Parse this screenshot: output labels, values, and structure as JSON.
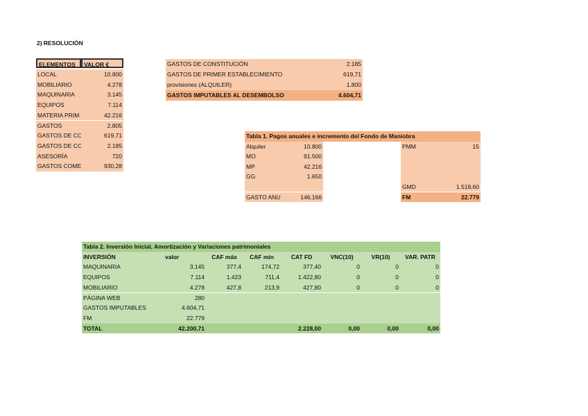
{
  "section_title": "2) RESOLUCIÓN",
  "elements": {
    "header": [
      "ELEMENTOS",
      "VALOR €"
    ],
    "rows": [
      [
        "LOCAL",
        "10.800"
      ],
      [
        "MOBILIARIO",
        "4.278"
      ],
      [
        "MAQUINARIA",
        "3.145"
      ],
      [
        "EQUIPOS",
        "7.114"
      ],
      [
        "MATERIA PRIM",
        "42.216"
      ],
      [
        "GASTOS",
        "2.805"
      ],
      [
        "GASTOS DE CO",
        "619,71"
      ],
      [
        "GASTOS DE CO",
        "2.185"
      ],
      [
        "ASESORÍA",
        "720"
      ],
      [
        "GASTOS COME",
        "930,28"
      ]
    ]
  },
  "expenses": {
    "rows": [
      [
        "GASTOS DE CONSTITUCIÓN",
        "2.185"
      ],
      [
        "GASTOS DE PRIMER ESTABLECIMIENTO",
        "619,71"
      ],
      [
        "provisiones (ALQUILER)",
        "1.800"
      ]
    ],
    "total": [
      "GASTOS IMPUTABLES AL DESEMBOLSO",
      "4.604,71"
    ]
  },
  "table1": {
    "title": "Tabla 1. Pagos anuales e incremento del Fondo de Maniobra",
    "rows": [
      [
        "Alquiler",
        "10.800",
        "PMM",
        "15"
      ],
      [
        "MO",
        "91.500",
        null,
        null
      ],
      [
        "MP",
        "42.216",
        null,
        null
      ],
      [
        "GG",
        "1.650",
        null,
        null
      ],
      [
        null,
        null,
        "GMD",
        "1.518,60"
      ],
      [
        "GASTO ANU",
        "146.166",
        "FM",
        "22.779"
      ]
    ]
  },
  "table2": {
    "title": "Tabla 2. Inversión Inicial, Amortización y Variaciones patrimoniales",
    "header": [
      "INVERSIÓN",
      "valor",
      "CAF máx",
      "CAF min",
      "CAT FD",
      "VNC(10)",
      "VR(10)",
      "VAR. PATR"
    ],
    "rows": [
      [
        "MAQUINARIA",
        "3.145",
        "377,4",
        "174,72",
        "377,40",
        "0",
        "0",
        "0"
      ],
      [
        "EQUIPOS",
        "7.114",
        "1.423",
        "711,4",
        "1.422,80",
        "0",
        "0",
        "0"
      ],
      [
        "MOBILIARIO",
        "4.278",
        "427,8",
        "213,9",
        "427,80",
        "0",
        "0",
        "0"
      ],
      [
        "PÁGINA WEB",
        "280",
        null,
        null,
        null,
        null,
        null,
        null
      ],
      [
        "GASTOS IMPUTABLES",
        "4.604,71",
        null,
        null,
        null,
        null,
        null,
        null
      ],
      [
        "FM",
        "22.779",
        null,
        null,
        null,
        null,
        null,
        null
      ]
    ],
    "total": [
      "TOTAL",
      "42.200,71",
      null,
      null,
      "2.228,00",
      "0,00",
      "0,00",
      "0,00"
    ]
  }
}
